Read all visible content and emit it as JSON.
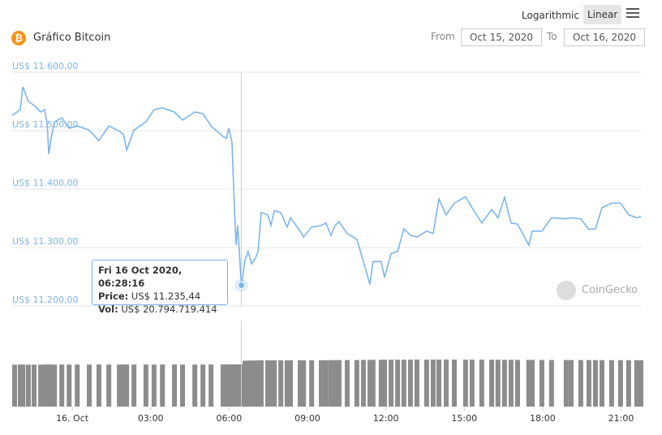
{
  "chart_data": {
    "type": "line",
    "title": "Gráfico Bitcoin",
    "scale_options": [
      "Logarithmic",
      "Linear"
    ],
    "log_scale": false,
    "date_from_label": "From",
    "date_from": "Oct 15, 2020",
    "date_to_label": "To",
    "date_to": "Oct 16, 2020",
    "watermark": "CoinGecko",
    "color": "#7cb5ec",
    "x": [
      -2.3,
      -1.99,
      -1.89,
      -1.68,
      -1.46,
      -1.21,
      -1.06,
      -0.96,
      -0.9,
      -0.81,
      -0.68,
      -0.4,
      -0.12,
      0.19,
      0.65,
      1.02,
      1.4,
      1.8,
      1.96,
      2.08,
      2.36,
      2.82,
      3.13,
      3.45,
      3.91,
      4.22,
      4.69,
      5.0,
      5.31,
      5.77,
      5.9,
      5.99,
      6.11,
      6.21,
      6.27,
      6.33,
      6.47,
      6.61,
      6.73,
      6.86,
      7.01,
      7.11,
      7.23,
      7.48,
      7.6,
      7.73,
      7.98,
      8.22,
      8.35,
      8.72,
      8.85,
      9.16,
      9.53,
      9.71,
      9.9,
      10.06,
      10.21,
      10.52,
      10.89,
      11.14,
      11.39,
      11.51,
      11.82,
      11.95,
      12.2,
      12.45,
      12.69,
      12.94,
      13.19,
      13.56,
      13.81,
      14.03,
      14.31,
      14.62,
      15.05,
      15.3,
      15.67,
      16.05,
      16.29,
      16.54,
      16.79,
      17.04,
      17.47,
      17.6,
      17.97,
      18.34,
      18.9,
      19.09,
      19.46,
      19.77,
      20.02,
      20.27,
      20.64,
      20.98,
      21.29,
      21.6,
      21.76
    ],
    "values": [
      11526,
      11536,
      11575,
      11550,
      11543,
      11532,
      11536,
      11511,
      11460,
      11487,
      11515,
      11522,
      11504,
      11508,
      11501,
      11483,
      11508,
      11499,
      11494,
      11467,
      11501,
      11515,
      11536,
      11539,
      11532,
      11518,
      11532,
      11529,
      11508,
      11490,
      11487,
      11504,
      11481,
      11363,
      11304,
      11338,
      11235.44,
      11279,
      11293,
      11272,
      11282,
      11293,
      11360,
      11356,
      11338,
      11363,
      11360,
      11335,
      11351,
      11328,
      11318,
      11335,
      11338,
      11342,
      11321,
      11338,
      11344,
      11324,
      11314,
      11276,
      11237,
      11276,
      11276,
      11249,
      11290,
      11293,
      11332,
      11321,
      11318,
      11328,
      11324,
      11383,
      11356,
      11376,
      11387,
      11368,
      11342,
      11365,
      11351,
      11386,
      11342,
      11340,
      11304,
      11328,
      11328,
      11351,
      11349,
      11351,
      11349,
      11331,
      11332,
      11368,
      11376,
      11376,
      11356,
      11351,
      11353
    ],
    "volume": {
      "color": "#8c8c8c",
      "axis": "y2",
      "values": [
        20650000000,
        20700000000,
        20720000000,
        20680000000,
        20710000000,
        20690000000,
        20730000000,
        20700000000,
        20760000000,
        20720000000,
        20690000000,
        20740000000,
        20710000000,
        20700000000,
        20730000000,
        20760000000,
        20720000000,
        20700000000,
        20740000000,
        20780000000,
        20730000000,
        20710000000,
        20700000000,
        20740000000,
        20760000000,
        20730000000,
        20700000000,
        20720000000,
        20750000000,
        20770000000,
        20760000000,
        20780000000,
        20790000000,
        20800000000,
        20790000000,
        20800000000,
        20794719414,
        22600000000,
        22650000000,
        22700000000,
        22720000000,
        22750000000,
        22780000000,
        22800000000,
        22790000000,
        22820000000,
        22800000000,
        22830000000,
        22810000000,
        22840000000,
        22820000000,
        22850000000,
        22870000000,
        22860000000,
        22880000000,
        22900000000,
        22920000000,
        22950000000,
        22970000000,
        23000000000,
        23020000000,
        23050000000,
        23060000000,
        23080000000,
        23100000000,
        23120000000,
        23100000000,
        23130000000,
        23150000000,
        23140000000,
        23160000000,
        23180000000,
        23170000000,
        23160000000,
        23150000000,
        23130000000,
        23120000000,
        23100000000,
        23080000000,
        23060000000,
        23050000000,
        23030000000,
        23020000000,
        23000000000,
        22980000000,
        22970000000,
        22960000000,
        22950000000,
        22940000000,
        22930000000,
        22920000000,
        22900000000,
        22890000000,
        22880000000,
        22870000000,
        22860000000,
        22850000000
      ]
    },
    "xlim": [
      -2.3,
      21.76
    ],
    "xticks": [
      {
        "value": 0,
        "label": "16. Oct"
      },
      {
        "value": 3,
        "label": "03:00"
      },
      {
        "value": 6,
        "label": "06:00"
      },
      {
        "value": 9,
        "label": "09:00"
      },
      {
        "value": 12,
        "label": "12:00"
      },
      {
        "value": 15,
        "label": "15:00"
      },
      {
        "value": 18,
        "label": "18:00"
      },
      {
        "value": 21,
        "label": "21:00"
      }
    ],
    "ylim": [
      11200,
      11600
    ],
    "yticks": [
      {
        "value": 11200,
        "label": "US$ 11.200,00"
      },
      {
        "value": 11300,
        "label": "US$ 11.300,00"
      },
      {
        "value": 11400,
        "label": "US$ 11.400,00"
      },
      {
        "value": 11500,
        "label": "US$ 11.500,00"
      },
      {
        "value": 11600,
        "label": "US$ 11.600,00"
      }
    ],
    "y2lim": [
      0,
      42000000000
    ],
    "grid": true,
    "tooltip": {
      "x": 6.47,
      "date": "Fri 16 Oct 2020, 06:28:16",
      "price_label": "Price:",
      "price": "US$ 11.235,44",
      "vol_label": "Vol:",
      "vol": "US$ 20.794.719.414"
    }
  }
}
